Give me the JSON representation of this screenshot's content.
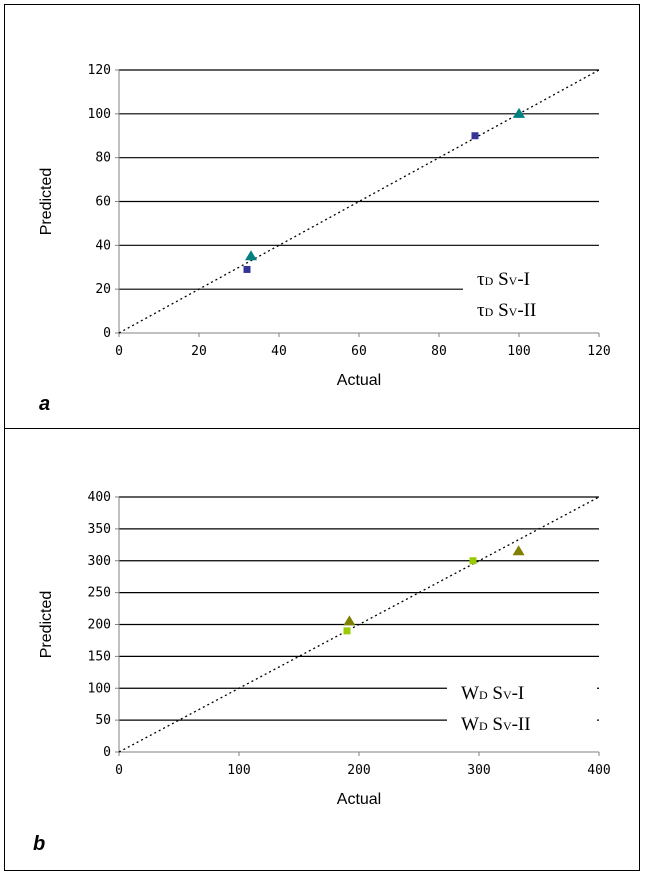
{
  "chart_data": [
    {
      "type": "scatter",
      "panel_label": "a",
      "xlabel": "Actual",
      "ylabel": "Predicted",
      "xlim": [
        0,
        120
      ],
      "ylim": [
        0,
        120
      ],
      "xticks": [
        0,
        20,
        40,
        60,
        80,
        100,
        120
      ],
      "yticks": [
        0,
        20,
        40,
        60,
        80,
        100,
        120
      ],
      "grid": "horizontal",
      "reference_line": "y = x (dotted)",
      "legend_placement": "bottom-right",
      "series": [
        {
          "name_main": "τ",
          "name_sub1": "D",
          "name_mid": " S",
          "name_sub2": "V",
          "name_tail": "-I",
          "marker": "square",
          "color": "#333399",
          "points": [
            [
              32,
              29
            ],
            [
              89,
              90
            ]
          ]
        },
        {
          "name_main": "τ",
          "name_sub1": "D",
          "name_mid": " S",
          "name_sub2": "V",
          "name_tail": "-II",
          "marker": "triangle",
          "color": "#008080",
          "points": [
            [
              33,
              35
            ],
            [
              100,
              100
            ]
          ]
        }
      ]
    },
    {
      "type": "scatter",
      "panel_label": "b",
      "xlabel": "Actual",
      "ylabel": "Predicted",
      "xlim": [
        0,
        400
      ],
      "ylim": [
        0,
        400
      ],
      "xticks": [
        0,
        100,
        200,
        300,
        400
      ],
      "yticks": [
        0,
        50,
        100,
        150,
        200,
        250,
        300,
        350,
        400
      ],
      "grid": "horizontal",
      "reference_line": "y = x (dotted)",
      "legend_placement": "bottom-right",
      "series": [
        {
          "name_main": "W",
          "name_sub1": "D",
          "name_mid": " S",
          "name_sub2": "V",
          "name_tail": "-I",
          "marker": "square",
          "color": "#99CC00",
          "points": [
            [
              190,
              190
            ],
            [
              295,
              300
            ]
          ]
        },
        {
          "name_main": "W",
          "name_sub1": "D",
          "name_mid": " S",
          "name_sub2": "V",
          "name_tail": "-II",
          "marker": "triangle",
          "color": "#808000",
          "points": [
            [
              192,
              205
            ],
            [
              333,
              315
            ]
          ]
        }
      ]
    }
  ]
}
